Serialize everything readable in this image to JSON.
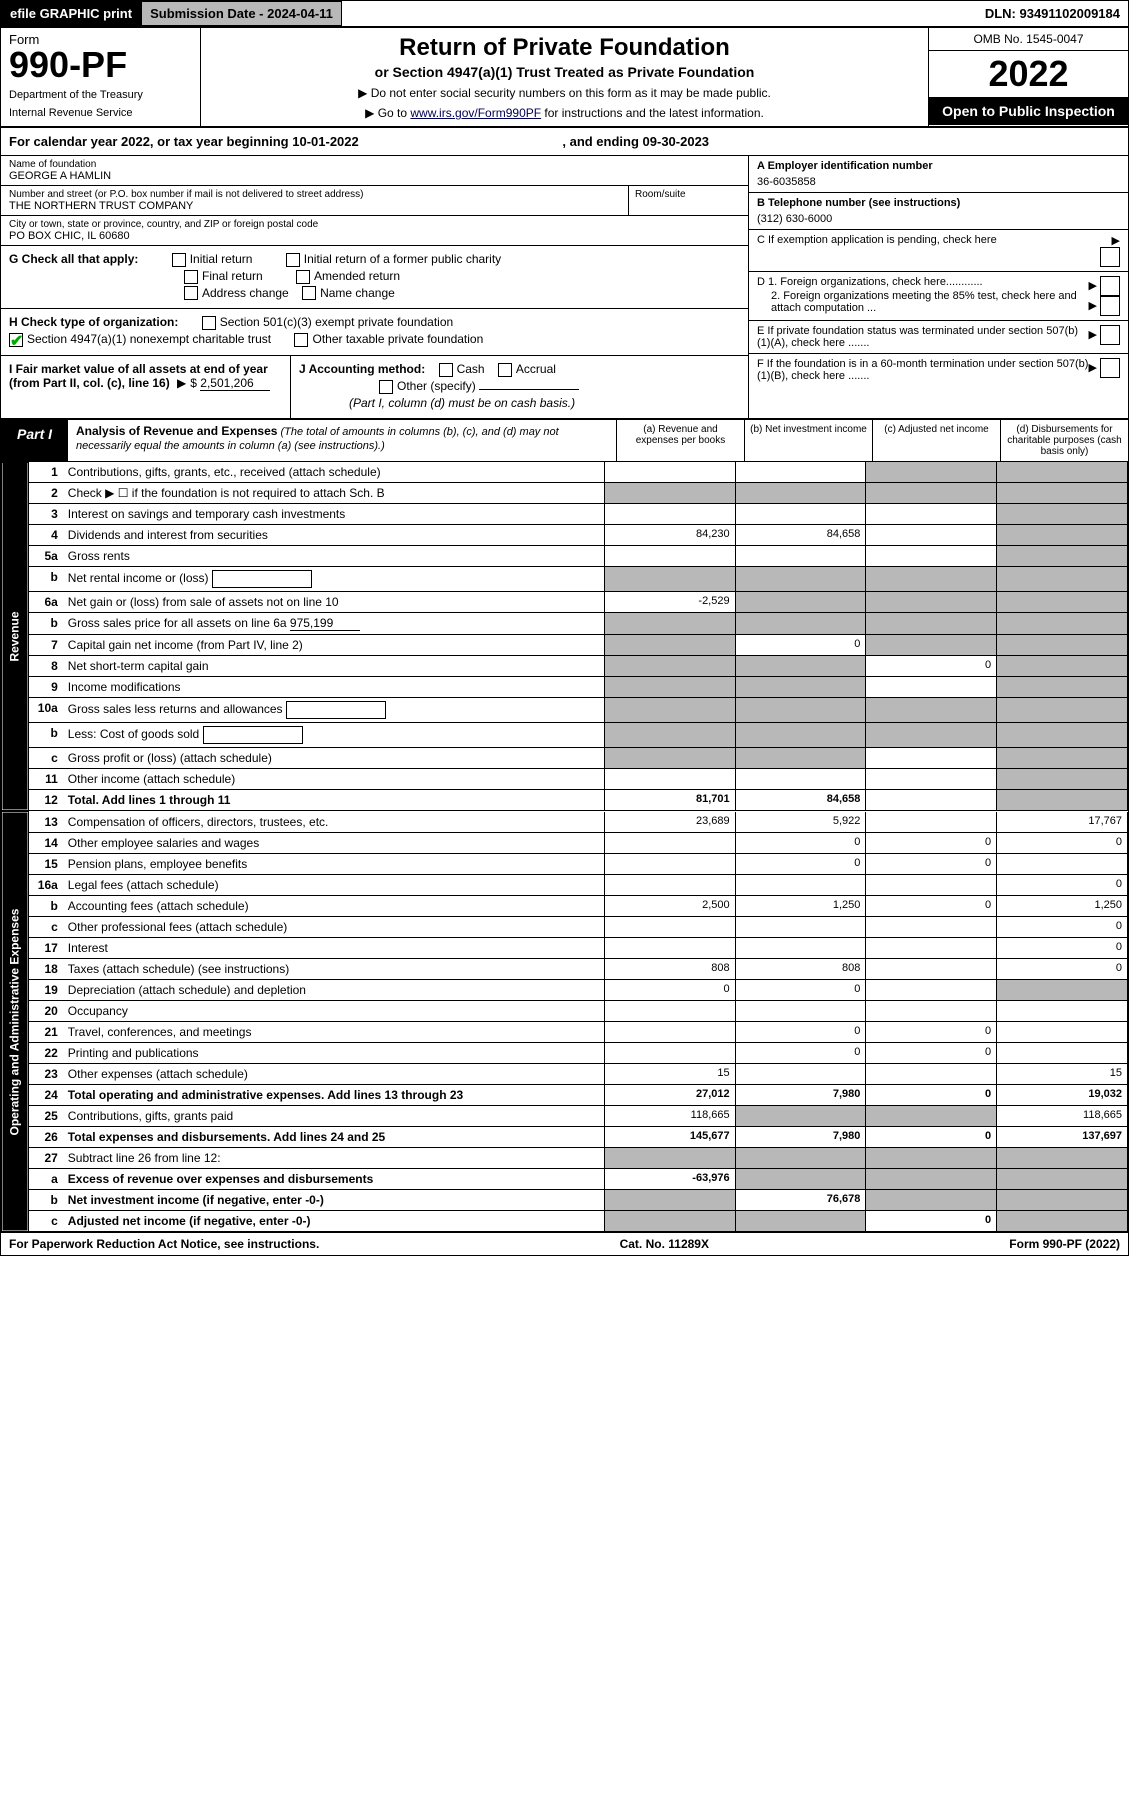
{
  "topbar": {
    "efile": "efile GRAPHIC print",
    "subdate_label": "Submission Date - ",
    "subdate": "2024-04-11",
    "dln_label": "DLN: ",
    "dln": "93491102009184"
  },
  "header": {
    "form_word": "Form",
    "form_no": "990-PF",
    "dept": "Department of the Treasury",
    "irs": "Internal Revenue Service",
    "title": "Return of Private Foundation",
    "subtitle": "or Section 4947(a)(1) Trust Treated as Private Foundation",
    "note1": "▶ Do not enter social security numbers on this form as it may be made public.",
    "note2_a": "▶ Go to ",
    "note2_link": "www.irs.gov/Form990PF",
    "note2_b": " for instructions and the latest information.",
    "omb": "OMB No. 1545-0047",
    "year": "2022",
    "open": "Open to Public Inspection"
  },
  "calendar": {
    "text_a": "For calendar year 2022, or tax year beginning ",
    "begin": "10-01-2022",
    "text_b": ", and ending ",
    "end": "09-30-2023"
  },
  "ident": {
    "name_label": "Name of foundation",
    "name": "GEORGE A HAMLIN",
    "addr_label": "Number and street (or P.O. box number if mail is not delivered to street address)",
    "addr": "THE NORTHERN TRUST COMPANY",
    "room_label": "Room/suite",
    "city_label": "City or town, state or province, country, and ZIP or foreign postal code",
    "city": "PO BOX CHIC, IL  60680",
    "ein_label": "A Employer identification number",
    "ein": "36-6035858",
    "tel_label": "B Telephone number (see instructions)",
    "tel": "(312) 630-6000",
    "c_label": "C If exemption application is pending, check here",
    "d1": "D 1. Foreign organizations, check here............",
    "d2": "2. Foreign organizations meeting the 85% test, check here and attach computation ...",
    "e": "E  If private foundation status was terminated under section 507(b)(1)(A), check here .......",
    "f": "F  If the foundation is in a 60-month termination under section 507(b)(1)(B), check here .......",
    "g_label": "G Check all that apply:",
    "g_opts": [
      "Initial return",
      "Initial return of a former public charity",
      "Final return",
      "Amended return",
      "Address change",
      "Name change"
    ],
    "h_label": "H Check type of organization:",
    "h1": "Section 501(c)(3) exempt private foundation",
    "h2": "Section 4947(a)(1) nonexempt charitable trust",
    "h3": "Other taxable private foundation",
    "i_label_a": "I Fair market value of all assets at end of year (from Part II, col. (c), line 16)",
    "i_val": "2,501,206",
    "j_label": "J Accounting method:",
    "j_cash": "Cash",
    "j_accrual": "Accrual",
    "j_other": "Other (specify)",
    "j_note": "(Part I, column (d) must be on cash basis.)"
  },
  "part1": {
    "label": "Part I",
    "title": "Analysis of Revenue and Expenses",
    "title_note": " (The total of amounts in columns (b), (c), and (d) may not necessarily equal the amounts in column (a) (see instructions).)",
    "col_a": "(a)  Revenue and expenses per books",
    "col_b": "(b)  Net investment income",
    "col_c": "(c)  Adjusted net income",
    "col_d": "(d)  Disbursements for charitable purposes (cash basis only)",
    "side_rev": "Revenue",
    "side_exp": "Operating and Administrative Expenses"
  },
  "rows": [
    {
      "n": "1",
      "lbl": "Contributions, gifts, grants, etc., received (attach schedule)",
      "a": "",
      "b": "",
      "c": "grey",
      "d": "grey"
    },
    {
      "n": "2",
      "lbl": "Check ▶ ☐ if the foundation is not required to attach Sch. B",
      "a": "grey",
      "b": "grey",
      "c": "grey",
      "d": "grey",
      "noval": true
    },
    {
      "n": "3",
      "lbl": "Interest on savings and temporary cash investments",
      "a": "",
      "b": "",
      "c": "",
      "d": "grey"
    },
    {
      "n": "4",
      "lbl": "Dividends and interest from securities",
      "a": "84,230",
      "b": "84,658",
      "c": "",
      "d": "grey"
    },
    {
      "n": "5a",
      "lbl": "Gross rents",
      "a": "",
      "b": "",
      "c": "",
      "d": "grey"
    },
    {
      "n": "b",
      "lbl": "Net rental income or (loss)",
      "a": "grey",
      "b": "grey",
      "c": "grey",
      "d": "grey",
      "inline_box": true
    },
    {
      "n": "6a",
      "lbl": "Net gain or (loss) from sale of assets not on line 10",
      "a": "-2,529",
      "b": "grey",
      "c": "grey",
      "d": "grey"
    },
    {
      "n": "b",
      "lbl": "Gross sales price for all assets on line 6a",
      "a": "grey",
      "b": "grey",
      "c": "grey",
      "d": "grey",
      "inline_val": "975,199"
    },
    {
      "n": "7",
      "lbl": "Capital gain net income (from Part IV, line 2)",
      "a": "grey",
      "b": "0",
      "c": "grey",
      "d": "grey"
    },
    {
      "n": "8",
      "lbl": "Net short-term capital gain",
      "a": "grey",
      "b": "grey",
      "c": "0",
      "d": "grey"
    },
    {
      "n": "9",
      "lbl": "Income modifications",
      "a": "grey",
      "b": "grey",
      "c": "",
      "d": "grey"
    },
    {
      "n": "10a",
      "lbl": "Gross sales less returns and allowances",
      "a": "grey",
      "b": "grey",
      "c": "grey",
      "d": "grey",
      "inline_box": true
    },
    {
      "n": "b",
      "lbl": "Less: Cost of goods sold",
      "a": "grey",
      "b": "grey",
      "c": "grey",
      "d": "grey",
      "inline_box": true
    },
    {
      "n": "c",
      "lbl": "Gross profit or (loss) (attach schedule)",
      "a": "grey",
      "b": "grey",
      "c": "",
      "d": "grey"
    },
    {
      "n": "11",
      "lbl": "Other income (attach schedule)",
      "a": "",
      "b": "",
      "c": "",
      "d": "grey"
    },
    {
      "n": "12",
      "lbl": "Total. Add lines 1 through 11",
      "a": "81,701",
      "b": "84,658",
      "c": "",
      "d": "grey",
      "bold": true
    }
  ],
  "exp_rows": [
    {
      "n": "13",
      "lbl": "Compensation of officers, directors, trustees, etc.",
      "a": "23,689",
      "b": "5,922",
      "c": "",
      "d": "17,767"
    },
    {
      "n": "14",
      "lbl": "Other employee salaries and wages",
      "a": "",
      "b": "0",
      "c": "0",
      "d": "0"
    },
    {
      "n": "15",
      "lbl": "Pension plans, employee benefits",
      "a": "",
      "b": "0",
      "c": "0",
      "d": ""
    },
    {
      "n": "16a",
      "lbl": "Legal fees (attach schedule)",
      "a": "",
      "b": "",
      "c": "",
      "d": "0"
    },
    {
      "n": "b",
      "lbl": "Accounting fees (attach schedule)",
      "a": "2,500",
      "b": "1,250",
      "c": "0",
      "d": "1,250"
    },
    {
      "n": "c",
      "lbl": "Other professional fees (attach schedule)",
      "a": "",
      "b": "",
      "c": "",
      "d": "0"
    },
    {
      "n": "17",
      "lbl": "Interest",
      "a": "",
      "b": "",
      "c": "",
      "d": "0"
    },
    {
      "n": "18",
      "lbl": "Taxes (attach schedule) (see instructions)",
      "a": "808",
      "b": "808",
      "c": "",
      "d": "0"
    },
    {
      "n": "19",
      "lbl": "Depreciation (attach schedule) and depletion",
      "a": "0",
      "b": "0",
      "c": "",
      "d": "grey"
    },
    {
      "n": "20",
      "lbl": "Occupancy",
      "a": "",
      "b": "",
      "c": "",
      "d": ""
    },
    {
      "n": "21",
      "lbl": "Travel, conferences, and meetings",
      "a": "",
      "b": "0",
      "c": "0",
      "d": ""
    },
    {
      "n": "22",
      "lbl": "Printing and publications",
      "a": "",
      "b": "0",
      "c": "0",
      "d": ""
    },
    {
      "n": "23",
      "lbl": "Other expenses (attach schedule)",
      "a": "15",
      "b": "",
      "c": "",
      "d": "15"
    },
    {
      "n": "24",
      "lbl": "Total operating and administrative expenses. Add lines 13 through 23",
      "a": "27,012",
      "b": "7,980",
      "c": "0",
      "d": "19,032",
      "bold": true
    },
    {
      "n": "25",
      "lbl": "Contributions, gifts, grants paid",
      "a": "118,665",
      "b": "grey",
      "c": "grey",
      "d": "118,665"
    },
    {
      "n": "26",
      "lbl": "Total expenses and disbursements. Add lines 24 and 25",
      "a": "145,677",
      "b": "7,980",
      "c": "0",
      "d": "137,697",
      "bold": true
    },
    {
      "n": "27",
      "lbl": "Subtract line 26 from line 12:",
      "a": "grey",
      "b": "grey",
      "c": "grey",
      "d": "grey"
    },
    {
      "n": "a",
      "lbl": "Excess of revenue over expenses and disbursements",
      "a": "-63,976",
      "b": "grey",
      "c": "grey",
      "d": "grey",
      "bold": true
    },
    {
      "n": "b",
      "lbl": "Net investment income (if negative, enter -0-)",
      "a": "grey",
      "b": "76,678",
      "c": "grey",
      "d": "grey",
      "bold": true
    },
    {
      "n": "c",
      "lbl": "Adjusted net income (if negative, enter -0-)",
      "a": "grey",
      "b": "grey",
      "c": "0",
      "d": "grey",
      "bold": true
    }
  ],
  "footer": {
    "left": "For Paperwork Reduction Act Notice, see instructions.",
    "mid": "Cat. No. 11289X",
    "right": "Form 990-PF (2022)"
  },
  "colors": {
    "grey": "#b8b8b8",
    "link": "#004",
    "check": "#0a0"
  }
}
